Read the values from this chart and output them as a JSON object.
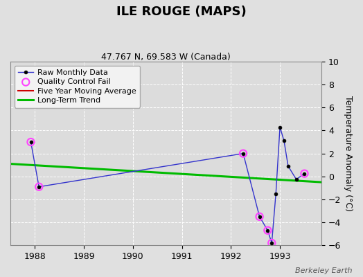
{
  "title": "ILE ROUGE (MAPS)",
  "subtitle": "47.767 N, 69.583 W (Canada)",
  "ylabel": "Temperature Anomaly (°C)",
  "watermark": "Berkeley Earth",
  "xlim": [
    1987.5,
    1993.85
  ],
  "ylim": [
    -6,
    10
  ],
  "yticks": [
    -6,
    -4,
    -2,
    0,
    2,
    4,
    6,
    8,
    10
  ],
  "xticks": [
    1988,
    1989,
    1990,
    1991,
    1992,
    1993
  ],
  "bg_color": "#e0e0e0",
  "plot_bg": "#dcdcdc",
  "raw_x": [
    1987.917,
    1988.083,
    1992.25,
    1992.583,
    1992.75,
    1992.833,
    1992.917,
    1993.0,
    1993.083,
    1993.167,
    1993.333,
    1993.5
  ],
  "raw_y": [
    3.0,
    -0.9,
    2.0,
    -3.5,
    -4.7,
    -5.8,
    -1.5,
    4.3,
    3.1,
    0.9,
    -0.25,
    0.25
  ],
  "qc_fail_x": [
    1987.917,
    1988.083,
    1992.25,
    1992.583,
    1992.75,
    1992.833,
    1993.5
  ],
  "qc_fail_y": [
    3.0,
    -0.9,
    2.0,
    -3.5,
    -4.7,
    -5.8,
    0.25
  ],
  "trend_x": [
    1987.5,
    1993.85
  ],
  "trend_y": [
    1.1,
    -0.5
  ],
  "raw_color": "#3333cc",
  "raw_marker_color": "#000000",
  "qc_color": "#ff44ff",
  "trend_color": "#00bb00",
  "five_year_color": "#cc0000",
  "legend_bg": "#f2f2f2",
  "title_fontsize": 13,
  "subtitle_fontsize": 9,
  "tick_fontsize": 9,
  "ylabel_fontsize": 9,
  "legend_fontsize": 8
}
